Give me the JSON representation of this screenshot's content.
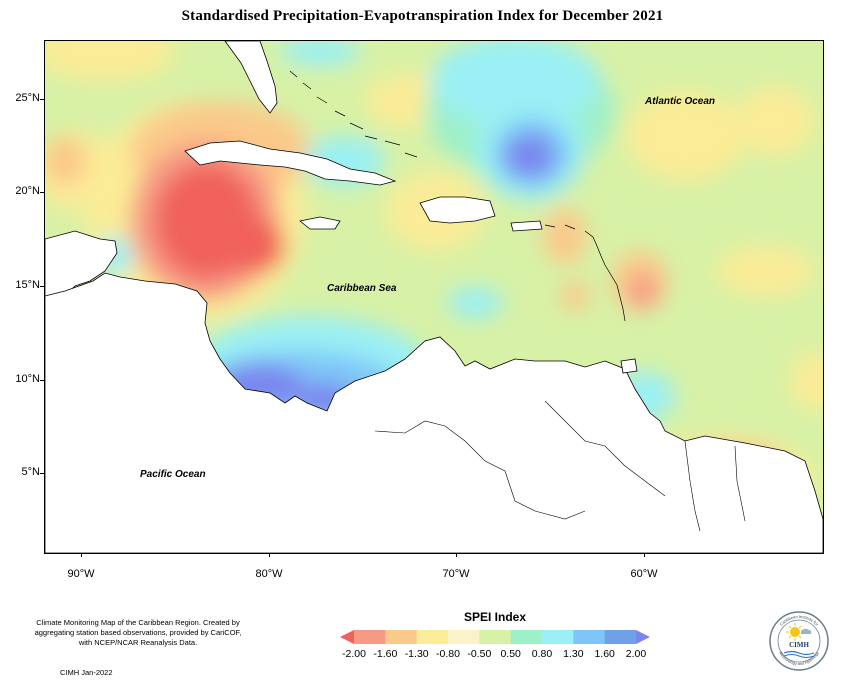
{
  "title": "Standardised Precipitation-Evapotranspiration Index for December 2021",
  "map": {
    "labels": {
      "atlantic": "Atlantic Ocean",
      "caribbean": "Caribbean Sea",
      "pacific": "Pacific Ocean"
    },
    "lat_ticks": [
      "25°N",
      "20°N",
      "15°N",
      "10°N",
      "5°N"
    ],
    "lon_ticks": [
      "90°W",
      "80°W",
      "70°W",
      "60°W"
    ]
  },
  "legend": {
    "title": "SPEI Index",
    "ticks": [
      "-2.00",
      "-1.60",
      "-1.30",
      "-0.80",
      "-0.50",
      "0.50",
      "0.80",
      "1.30",
      "1.60",
      "2.00"
    ],
    "colors": [
      "#f0625a",
      "#f69a85",
      "#fbc98a",
      "#fbec97",
      "#f8f3c8",
      "#d7f1a6",
      "#9ef0c8",
      "#9af0f4",
      "#7fc6f8",
      "#6fa0e8",
      "#7a86ee"
    ]
  },
  "credits": {
    "text": "Climate Monitoring Map of the Caribbean Region. Created by aggregating station based observations, provided by CariCOF, with NCEP/NCAR Reanalysis Data.",
    "date": "CIMH Jan-2022"
  },
  "logo": {
    "org_top": "Caribbean Institute for",
    "org_bottom": "Meteorology and Hydrology",
    "abbr": "CIMH"
  }
}
